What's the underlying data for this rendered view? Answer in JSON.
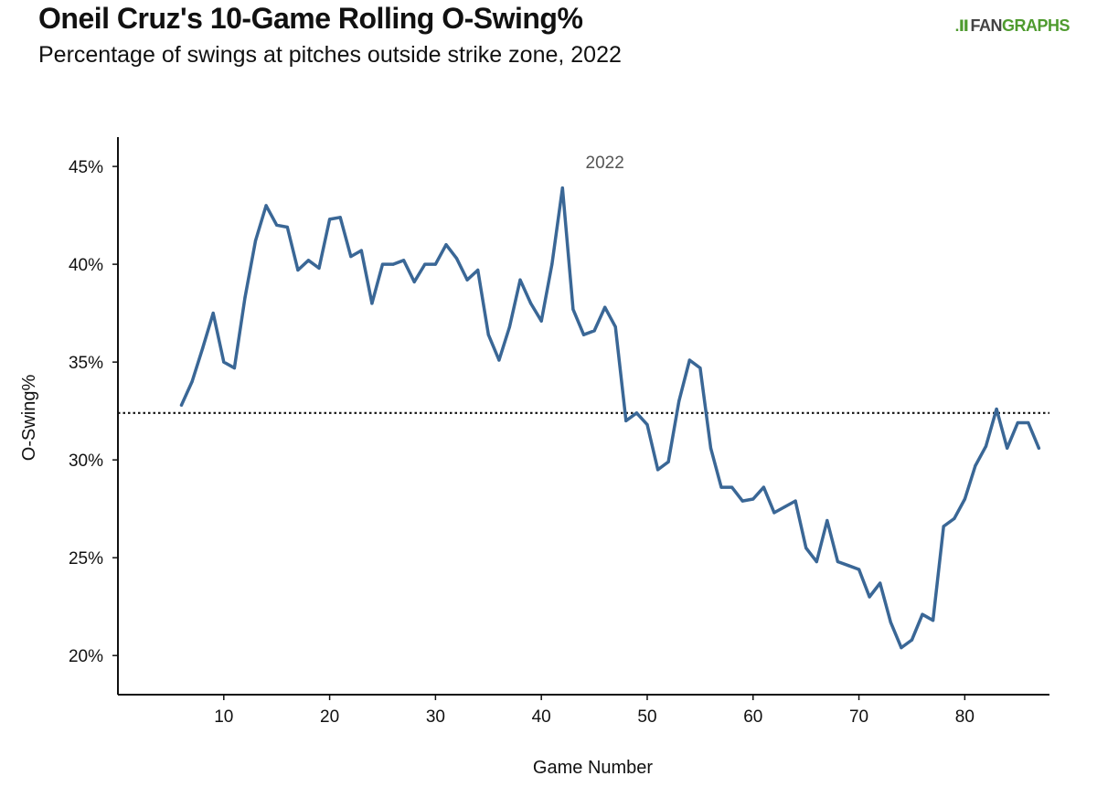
{
  "header": {
    "title": "Oneil Cruz's 10-Game Rolling O-Swing%",
    "subtitle": "Percentage of swings at pitches outside strike zone, 2022"
  },
  "logo": {
    "mark": ".Ⅱ",
    "fan": "FAN",
    "graphs": "GRAPHS",
    "brand_color": "#4f9b2f"
  },
  "chart_data": {
    "type": "line",
    "title": "Oneil Cruz's 10-Game Rolling O-Swing%",
    "subtitle": "Percentage of swings at pitches outside strike zone, 2022",
    "xlabel": "Game Number",
    "ylabel": "O-Swing%",
    "xlim": [
      0,
      88
    ],
    "ylim": [
      18,
      46.5
    ],
    "x_ticks": [
      10,
      20,
      30,
      40,
      50,
      60,
      70,
      80
    ],
    "y_ticks": [
      20,
      25,
      30,
      35,
      40,
      45
    ],
    "y_tick_suffix": "%",
    "grid": false,
    "line_color": "#3a6796",
    "reference_line": {
      "y": 32.4,
      "style": "dotted"
    },
    "annotation": {
      "text": "2022",
      "x": 46,
      "y": 44.9
    },
    "series": [
      {
        "x": [
          6,
          7,
          8,
          9,
          10,
          11,
          12,
          13,
          14,
          15,
          16,
          17,
          18,
          19,
          20,
          21,
          22,
          23,
          24,
          25,
          26,
          27,
          28,
          29,
          30,
          31,
          32,
          33,
          34,
          35,
          36,
          37,
          38,
          39,
          40,
          41,
          42,
          43,
          44,
          45,
          46,
          47,
          48,
          49,
          50,
          51,
          52,
          53,
          54,
          55,
          56,
          57,
          58,
          59,
          60,
          61,
          62,
          63,
          64,
          65,
          66,
          67,
          68,
          69,
          70,
          71,
          72,
          73,
          74,
          75,
          76,
          77,
          78,
          79,
          80,
          81,
          82,
          83,
          84,
          85,
          86,
          87
        ],
        "values": [
          32.8,
          34.0,
          35.7,
          37.5,
          35.0,
          34.7,
          38.3,
          41.2,
          43.0,
          42.0,
          41.9,
          39.7,
          40.2,
          39.8,
          42.3,
          42.4,
          40.4,
          40.7,
          38.0,
          40.0,
          40.0,
          40.2,
          39.1,
          40.0,
          40.0,
          41.0,
          40.3,
          39.2,
          39.7,
          36.4,
          35.1,
          36.8,
          39.2,
          38.0,
          37.1,
          40.0,
          43.9,
          37.7,
          36.4,
          36.6,
          37.8,
          36.8,
          32.0,
          32.4,
          31.8,
          29.5,
          29.9,
          33.0,
          35.1,
          34.7,
          30.6,
          28.6,
          28.6,
          27.9,
          28.0,
          28.6,
          27.3,
          27.6,
          27.9,
          25.5,
          24.8,
          26.9,
          24.8,
          24.6,
          24.4,
          23.0,
          23.7,
          21.7,
          20.4,
          20.8,
          22.1,
          21.8,
          26.6,
          27.0,
          28.0,
          29.7,
          30.7,
          32.6,
          30.6,
          31.9,
          31.9,
          30.6
        ]
      }
    ]
  }
}
